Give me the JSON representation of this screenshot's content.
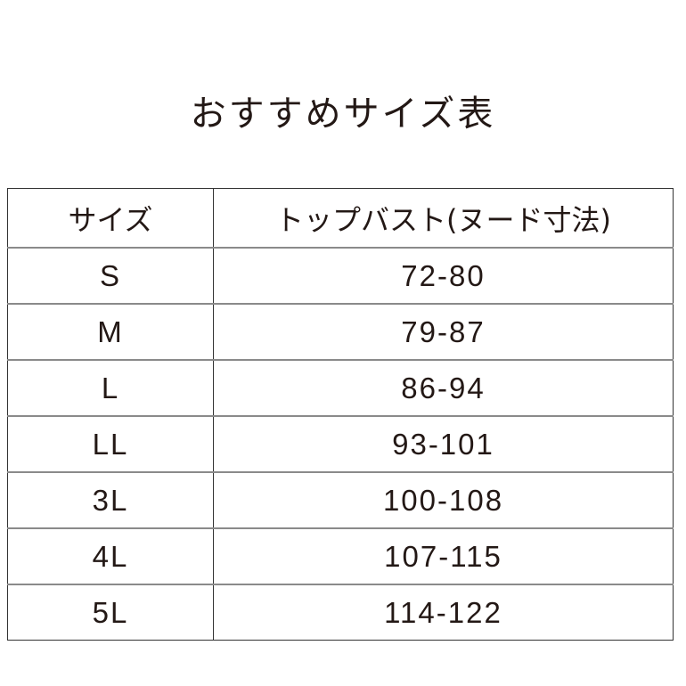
{
  "title": "おすすめサイズ表",
  "table": {
    "headers": [
      "サイズ",
      "トップバスト(ヌード寸法)"
    ],
    "rows": [
      [
        "S",
        "72-80"
      ],
      [
        "M",
        "79-87"
      ],
      [
        "L",
        "86-94"
      ],
      [
        "LL",
        "93-101"
      ],
      [
        "3L",
        "100-108"
      ],
      [
        "4L",
        "107-115"
      ],
      [
        "5L",
        "114-122"
      ]
    ]
  }
}
